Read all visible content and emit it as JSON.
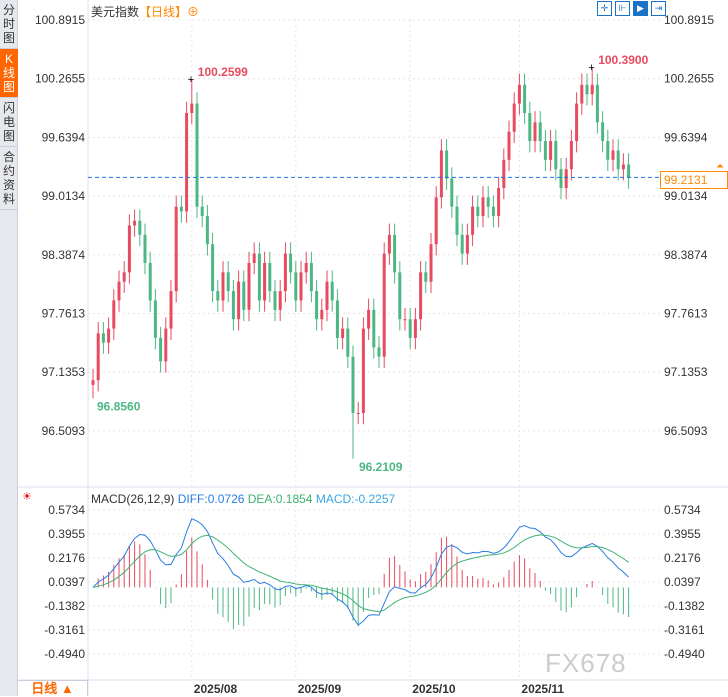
{
  "sidebar": {
    "tabs": [
      {
        "label": "分时图"
      },
      {
        "label": "K线图",
        "active": true
      },
      {
        "label": "闪电图"
      },
      {
        "label": "合约资料"
      }
    ]
  },
  "header": {
    "title": "美元指数",
    "period": "【日线】",
    "add_icon": "plus-circle-icon"
  },
  "toolbar": {
    "icons": [
      "crosshair-icon",
      "range-select-icon",
      "play-icon",
      "move-right-icon"
    ]
  },
  "current_price": "99.2131",
  "watermark": "FX678",
  "bottom_period": "日线 ▲",
  "colors": {
    "up": "#e84a5f",
    "down": "#4cb783",
    "diff": "#2a7de1",
    "dea": "#3cb371",
    "price_line": "#1a73e8",
    "label": "#f80"
  },
  "macd_header": {
    "name": "MACD(26,12,9)",
    "diff": "DIFF:0.0726",
    "dea": "DEA:0.1854",
    "macd": "MACD:-0.2257"
  },
  "chart_data": {
    "type": "candlestick",
    "y_ticks": [
      "100.8915",
      "100.2655",
      "99.6394",
      "99.0134",
      "98.3874",
      "97.7613",
      "97.1353",
      "96.5093"
    ],
    "ylim": [
      96.02,
      100.8915
    ],
    "annotations": [
      {
        "index": 19,
        "text": "100.2599",
        "value": 100.2599
      },
      {
        "index": 96,
        "text": "100.3900",
        "value": 100.39
      },
      {
        "index": 50,
        "text": "96.2109",
        "value": 96.2109
      },
      {
        "index": 0,
        "text": "96.8560",
        "value": 96.856
      }
    ],
    "x_ticks": [
      {
        "index": 19,
        "label": "2025/08"
      },
      {
        "index": 39,
        "label": "2025/09"
      },
      {
        "index": 61,
        "label": "2025/10"
      },
      {
        "index": 82,
        "label": "2025/11"
      }
    ],
    "closes": [
      97.05,
      97.55,
      97.45,
      97.6,
      97.9,
      98.1,
      98.2,
      98.7,
      98.75,
      98.6,
      98.3,
      97.9,
      97.5,
      97.25,
      97.6,
      98.0,
      98.9,
      98.85,
      99.9,
      100.0,
      98.9,
      98.8,
      98.5,
      98.0,
      97.9,
      98.2,
      98.0,
      97.7,
      98.1,
      97.8,
      98.3,
      98.4,
      97.9,
      98.3,
      98.0,
      97.8,
      98.0,
      98.4,
      98.2,
      97.9,
      98.2,
      98.3,
      98.0,
      97.7,
      97.8,
      98.1,
      97.9,
      97.5,
      97.6,
      97.3,
      96.7,
      96.7,
      97.6,
      97.8,
      97.4,
      97.3,
      98.4,
      98.6,
      98.2,
      97.7,
      97.7,
      97.5,
      97.7,
      98.2,
      98.1,
      98.5,
      99.0,
      99.5,
      99.2,
      98.9,
      98.6,
      98.4,
      98.6,
      98.9,
      98.8,
      99.0,
      98.9,
      98.8,
      99.1,
      99.4,
      99.7,
      100.0,
      100.2,
      99.9,
      99.6,
      99.8,
      99.6,
      99.4,
      99.6,
      99.3,
      99.1,
      99.3,
      99.6,
      100.0,
      100.2,
      100.1,
      100.2,
      99.8,
      99.6,
      99.4,
      99.5,
      99.3,
      99.35,
      99.21
    ],
    "opens": [
      97.0,
      97.05,
      97.55,
      97.45,
      97.6,
      97.9,
      98.1,
      98.2,
      98.7,
      98.75,
      98.6,
      98.3,
      97.9,
      97.5,
      97.25,
      97.6,
      98.0,
      98.9,
      98.85,
      99.9,
      100.0,
      98.9,
      98.8,
      98.5,
      98.0,
      97.9,
      98.2,
      98.0,
      97.7,
      98.1,
      97.8,
      98.3,
      98.4,
      97.9,
      98.3,
      98.0,
      97.8,
      98.0,
      98.4,
      98.2,
      97.9,
      98.2,
      98.3,
      98.0,
      97.7,
      97.8,
      98.1,
      97.9,
      97.5,
      97.6,
      97.3,
      96.7,
      96.7,
      97.6,
      97.8,
      97.4,
      97.3,
      98.4,
      98.6,
      98.2,
      97.7,
      97.7,
      97.5,
      97.7,
      98.2,
      98.1,
      98.5,
      99.0,
      99.5,
      99.2,
      98.9,
      98.6,
      98.4,
      98.6,
      98.9,
      98.8,
      99.0,
      98.9,
      98.8,
      99.1,
      99.4,
      99.7,
      100.0,
      100.2,
      99.9,
      99.6,
      99.8,
      99.6,
      99.4,
      99.6,
      99.3,
      99.1,
      99.3,
      99.6,
      100.0,
      100.2,
      100.1,
      100.2,
      99.8,
      99.6,
      99.4,
      99.5,
      99.3,
      99.35
    ],
    "macd_y_ticks": [
      "0.5734",
      "0.3955",
      "0.2176",
      "0.0397",
      "-0.1382",
      "-0.3161",
      "-0.4940"
    ],
    "macd_ylim": [
      -0.62,
      0.66
    ]
  }
}
